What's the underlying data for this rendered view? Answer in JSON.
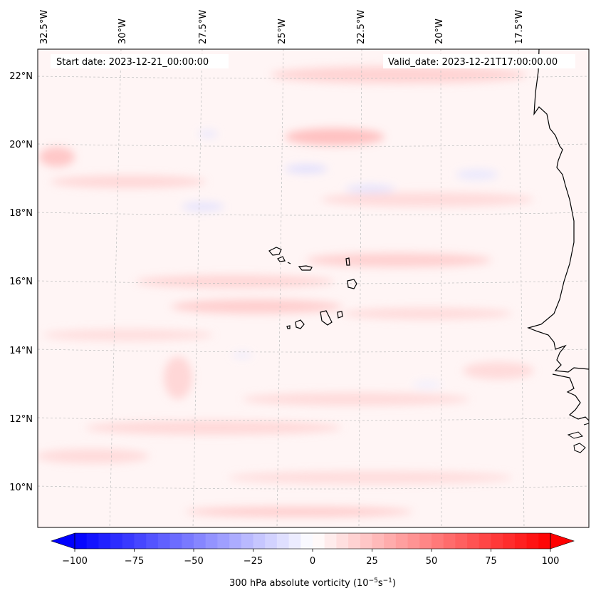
{
  "map": {
    "start_date": "Start date: 2023-12-21_00:00:00",
    "valid_date": "Valid_date: 2023-12-21T17:00:00.00",
    "lon_labels": [
      "32.5°W",
      "30°W",
      "27.5°W",
      "25°W",
      "22.5°W",
      "20°W",
      "17.5°W"
    ],
    "lat_labels": [
      "22°N",
      "20°N",
      "18°N",
      "16°N",
      "14°N",
      "12°N",
      "10°N"
    ],
    "colors": {
      "negative": "#0000ff",
      "positive": "#ff0000",
      "neutral": "#ffffff",
      "background_field": "#fff4f4"
    }
  },
  "colorbar": {
    "ticks": [
      "−100",
      "−75",
      "−50",
      "−25",
      "0",
      "25",
      "50",
      "75",
      "100"
    ],
    "label_text": "300 hPa absolute vorticity (10",
    "label_exp1": "−5",
    "label_mid": "s",
    "label_exp2": "−1",
    "label_end": ")",
    "range": [
      -100,
      100
    ]
  }
}
